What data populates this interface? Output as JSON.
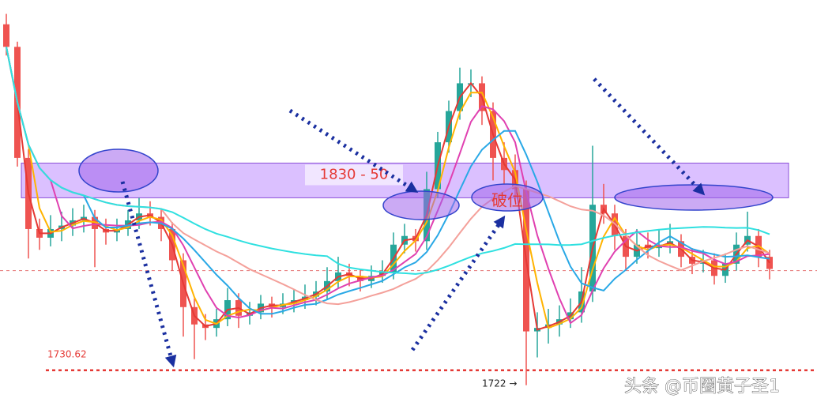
{
  "chart_data": {
    "type": "candlestick",
    "candles": [
      [
        1930,
        1936,
        1912,
        1917
      ],
      [
        1917,
        1920,
        1848,
        1853
      ],
      [
        1853,
        1858,
        1795,
        1812
      ],
      [
        1812,
        1818,
        1800,
        1807
      ],
      [
        1807,
        1820,
        1802,
        1812
      ],
      [
        1812,
        1822,
        1805,
        1814
      ],
      [
        1814,
        1824,
        1808,
        1817
      ],
      [
        1817,
        1826,
        1810,
        1819
      ],
      [
        1819,
        1823,
        1790,
        1812
      ],
      [
        1812,
        1818,
        1803,
        1810
      ],
      [
        1810,
        1818,
        1805,
        1812
      ],
      [
        1812,
        1823,
        1808,
        1817
      ],
      [
        1817,
        1830,
        1812,
        1821
      ],
      [
        1821,
        1828,
        1814,
        1819
      ],
      [
        1819,
        1824,
        1805,
        1812
      ],
      [
        1812,
        1816,
        1788,
        1794
      ],
      [
        1794,
        1798,
        1750,
        1767
      ],
      [
        1767,
        1772,
        1737,
        1757
      ],
      [
        1757,
        1763,
        1748,
        1755
      ],
      [
        1755,
        1766,
        1750,
        1760
      ],
      [
        1760,
        1778,
        1756,
        1771
      ],
      [
        1771,
        1775,
        1755,
        1762
      ],
      [
        1762,
        1770,
        1757,
        1764
      ],
      [
        1764,
        1774,
        1760,
        1769
      ],
      [
        1769,
        1773,
        1761,
        1767
      ],
      [
        1767,
        1775,
        1763,
        1769
      ],
      [
        1769,
        1777,
        1764,
        1771
      ],
      [
        1771,
        1780,
        1766,
        1773
      ],
      [
        1773,
        1782,
        1768,
        1776
      ],
      [
        1776,
        1790,
        1771,
        1782
      ],
      [
        1782,
        1796,
        1778,
        1787
      ],
      [
        1787,
        1792,
        1779,
        1785
      ],
      [
        1785,
        1789,
        1776,
        1782
      ],
      [
        1782,
        1791,
        1778,
        1785
      ],
      [
        1785,
        1794,
        1781,
        1787
      ],
      [
        1787,
        1810,
        1783,
        1803
      ],
      [
        1803,
        1815,
        1798,
        1808
      ],
      [
        1808,
        1812,
        1799,
        1805
      ],
      [
        1805,
        1845,
        1800,
        1835
      ],
      [
        1835,
        1868,
        1830,
        1862
      ],
      [
        1862,
        1886,
        1856,
        1880
      ],
      [
        1880,
        1905,
        1875,
        1896
      ],
      [
        1896,
        1904,
        1888,
        1896
      ],
      [
        1896,
        1900,
        1872,
        1880
      ],
      [
        1880,
        1885,
        1840,
        1853
      ],
      [
        1853,
        1862,
        1838,
        1846
      ],
      [
        1846,
        1855,
        1828,
        1835
      ],
      [
        1835,
        1840,
        1722,
        1753
      ],
      [
        1753,
        1764,
        1738,
        1755
      ],
      [
        1755,
        1766,
        1746,
        1757
      ],
      [
        1757,
        1768,
        1750,
        1760
      ],
      [
        1760,
        1772,
        1755,
        1764
      ],
      [
        1764,
        1790,
        1758,
        1776
      ],
      [
        1776,
        1860,
        1770,
        1826
      ],
      [
        1826,
        1838,
        1815,
        1821
      ],
      [
        1821,
        1826,
        1800,
        1808
      ],
      [
        1808,
        1812,
        1788,
        1796
      ],
      [
        1796,
        1812,
        1792,
        1803
      ],
      [
        1803,
        1810,
        1795,
        1801
      ],
      [
        1801,
        1812,
        1796,
        1803
      ],
      [
        1803,
        1815,
        1798,
        1805
      ],
      [
        1805,
        1809,
        1790,
        1796
      ],
      [
        1796,
        1801,
        1786,
        1792
      ],
      [
        1792,
        1800,
        1787,
        1794
      ],
      [
        1794,
        1798,
        1780,
        1785
      ],
      [
        1785,
        1798,
        1781,
        1792
      ],
      [
        1792,
        1810,
        1788,
        1803
      ],
      [
        1803,
        1822,
        1799,
        1808
      ],
      [
        1808,
        1812,
        1790,
        1796
      ],
      [
        1796,
        1800,
        1783,
        1789
      ]
    ],
    "up_color": "#26a69a",
    "down_color": "#ef5350",
    "ma_colors": [
      "#e53935",
      "#ffb300",
      "#e040b0",
      "#29a8e6",
      "#f4a09a",
      "#2ee0e0"
    ],
    "ylim": [
      1710,
      1944
    ],
    "zone": {
      "low": 1830,
      "high": 1850,
      "label": "1830 - 50"
    },
    "break_label": "破位",
    "support": 1730.62,
    "price_line": 1788,
    "low_label": "1722 →",
    "watermark": "头条 @币圈黄子圣1"
  }
}
